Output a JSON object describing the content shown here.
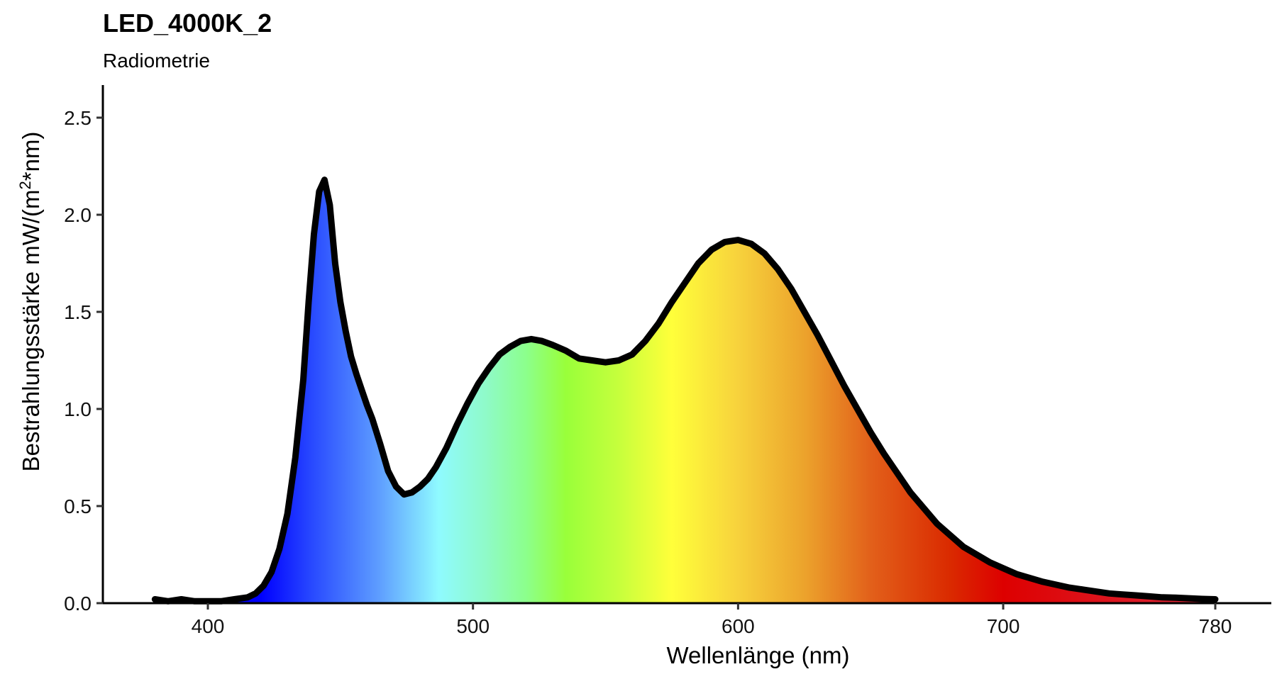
{
  "chart_data": {
    "type": "area",
    "title": "LED_4000K_2",
    "subtitle": "Radiometrie",
    "xlabel": "Wellenlänge (nm)",
    "ylabel_main": "Bestrahlungsstärke  mW/(m",
    "ylabel_sup": "2",
    "ylabel_tail": "*nm)",
    "xlim": [
      360,
      800
    ],
    "ylim": [
      0,
      2.65
    ],
    "xticks": [
      400,
      500,
      600,
      700,
      780
    ],
    "xtick_labels": [
      "400",
      "500",
      "600",
      "700",
      "780"
    ],
    "yticks": [
      0,
      0.5,
      1.0,
      1.5,
      2.0,
      2.5
    ],
    "ytick_labels": [
      "0.0",
      "0.5",
      "1.0",
      "1.5",
      "2.0",
      "2.5"
    ],
    "grid": false,
    "legend": "none",
    "fill": "visible-spectrum gradient",
    "line_color": "#000000",
    "series": [
      {
        "x": [
          380,
          385,
          390,
          395,
          400,
          405,
          410,
          415,
          418,
          421,
          424,
          427,
          430,
          433,
          436,
          438,
          440,
          442,
          444,
          446,
          448,
          450,
          452,
          454,
          456,
          458,
          460,
          462,
          465,
          468,
          471,
          474,
          477,
          480,
          483,
          486,
          490,
          494,
          498,
          502,
          506,
          510,
          514,
          518,
          522,
          526,
          530,
          535,
          540,
          545,
          550,
          555,
          560,
          565,
          570,
          575,
          580,
          585,
          590,
          595,
          600,
          605,
          610,
          615,
          620,
          625,
          630,
          635,
          640,
          645,
          650,
          655,
          660,
          665,
          670,
          675,
          680,
          685,
          690,
          695,
          700,
          705,
          710,
          715,
          720,
          725,
          730,
          735,
          740,
          745,
          750,
          755,
          760,
          765,
          770,
          775,
          780
        ],
        "values": [
          0.02,
          0.01,
          0.02,
          0.01,
          0.01,
          0.01,
          0.02,
          0.03,
          0.05,
          0.09,
          0.16,
          0.28,
          0.46,
          0.75,
          1.15,
          1.55,
          1.9,
          2.12,
          2.18,
          2.05,
          1.75,
          1.55,
          1.4,
          1.27,
          1.18,
          1.1,
          1.02,
          0.95,
          0.82,
          0.68,
          0.6,
          0.56,
          0.57,
          0.6,
          0.64,
          0.7,
          0.8,
          0.92,
          1.03,
          1.13,
          1.21,
          1.28,
          1.32,
          1.35,
          1.36,
          1.35,
          1.33,
          1.3,
          1.26,
          1.25,
          1.24,
          1.25,
          1.28,
          1.35,
          1.44,
          1.55,
          1.65,
          1.75,
          1.82,
          1.86,
          1.87,
          1.85,
          1.8,
          1.72,
          1.62,
          1.5,
          1.38,
          1.25,
          1.12,
          1.0,
          0.88,
          0.77,
          0.67,
          0.57,
          0.49,
          0.41,
          0.35,
          0.29,
          0.25,
          0.21,
          0.18,
          0.15,
          0.13,
          0.11,
          0.095,
          0.08,
          0.07,
          0.06,
          0.05,
          0.045,
          0.04,
          0.035,
          0.03,
          0.028,
          0.025,
          0.022,
          0.02
        ]
      }
    ]
  }
}
